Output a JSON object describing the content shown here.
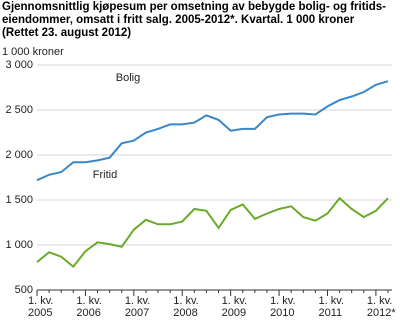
{
  "chart_data": {
    "type": "line",
    "title": [
      "Gjennomsnittlig kjøpesum per omsetning av bebygde bolig- og fritids-",
      "eiendommer, omsatt i fritt salg. 2005-2012*. Kvartal. 1 000 kroner",
      "(Rettet 23. august 2012)"
    ],
    "ylabel": "1 000 kroner",
    "categories": [
      "1. kv.\n2005",
      null,
      null,
      null,
      "1. kv.\n2006",
      null,
      null,
      null,
      "1. kv.\n2007",
      null,
      null,
      null,
      "1. kv.\n2008",
      null,
      null,
      null,
      "1. kv.\n2009",
      null,
      null,
      null,
      "1. kv.\n2010",
      null,
      null,
      null,
      "1. kv.\n2011",
      null,
      null,
      null,
      "1. kv.\n2012*",
      null
    ],
    "series": [
      {
        "name": "Bolig",
        "color": "#3a87c8",
        "values": [
          1720,
          1780,
          1810,
          1920,
          1920,
          1940,
          1970,
          2130,
          2160,
          2250,
          2290,
          2340,
          2340,
          2360,
          2440,
          2390,
          2270,
          2290,
          2290,
          2420,
          2450,
          2460,
          2460,
          2450,
          2540,
          2610,
          2650,
          2700,
          2780,
          2820
        ]
      },
      {
        "name": "Fritid",
        "color": "#6aaa2a",
        "values": [
          810,
          920,
          870,
          760,
          930,
          1030,
          1010,
          980,
          1170,
          1280,
          1230,
          1230,
          1260,
          1400,
          1380,
          1190,
          1390,
          1450,
          1290,
          1350,
          1400,
          1430,
          1310,
          1270,
          1350,
          1520,
          1400,
          1310,
          1380,
          1520
        ]
      }
    ],
    "ylim": [
      500,
      3000
    ],
    "yticks": [
      {
        "value": 500,
        "label": "500"
      },
      {
        "value": 1000,
        "label": "1 000"
      },
      {
        "value": 1500,
        "label": "1 500"
      },
      {
        "value": 2000,
        "label": "2 000"
      },
      {
        "value": 2500,
        "label": "2 500"
      },
      {
        "value": 3000,
        "label": "3 000"
      }
    ],
    "grid": true
  }
}
